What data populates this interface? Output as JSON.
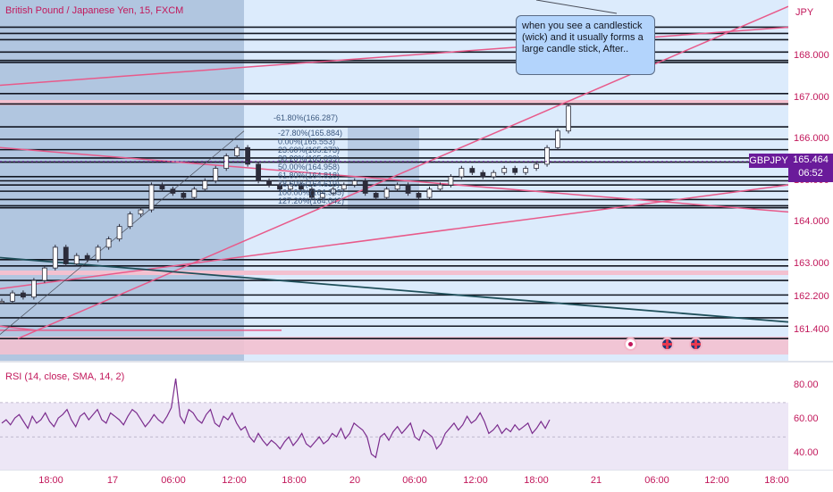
{
  "header": {
    "symbol_title": "British Pound / Japanese Yen, 15, FXCM",
    "rsi_title": "RSI (14, close, SMA, 14, 2)"
  },
  "price_tag": {
    "symbol": "GBPJPY",
    "price": "165.464",
    "countdown": "06:52"
  },
  "annotation": {
    "text": "when you see a candlestick (wick) and it usually forms a large candle stick, After.."
  },
  "fib_labels": [
    "-61.80%(166.287)",
    "-27.80%(165.884)",
    "0.00%(165.553)",
    "23.60%(165.273)",
    "38.20%(165.099)",
    "50.00%(164.958)",
    "61.80%(164.818)",
    "78.60%(164.619)",
    "100.00%(164.365)",
    "127.20%(164.042)"
  ],
  "colors": {
    "accent": "#c2185b",
    "tag": "#6a1b9a",
    "candle": "#2c2c3a",
    "rsi_line": "#7b2d8e",
    "trendline": "#e85a8a"
  },
  "icons": [
    "event-icon",
    "uk-flag-icon",
    "uk-flag-icon"
  ],
  "chart_data": [
    {
      "type": "candlestick",
      "price_axis": {
        "unit": "JPY",
        "ticks": [
          "168.000",
          "167.000",
          "166.000",
          "165.000",
          "164.000",
          "163.000",
          "162.200",
          "161.400"
        ],
        "range": [
          161.0,
          169.0
        ]
      },
      "time_axis": {
        "ticks": [
          "18:00",
          "17",
          "06:00",
          "12:00",
          "18:00",
          "20",
          "06:00",
          "12:00",
          "18:00",
          "21",
          "06:00",
          "12:00",
          "18:00"
        ]
      },
      "last_price": 165.464,
      "price_path": [
        162.1,
        162.3,
        162.2,
        162.6,
        162.9,
        163.4,
        163.0,
        163.2,
        163.1,
        163.4,
        163.6,
        163.9,
        164.2,
        164.3,
        164.9,
        164.8,
        164.7,
        164.6,
        164.8,
        165.0,
        165.3,
        165.6,
        165.8,
        165.4,
        165.0,
        164.9,
        164.8,
        164.9,
        164.8,
        164.6,
        164.7,
        164.8,
        164.9,
        165.0,
        164.7,
        164.6,
        164.8,
        164.9,
        164.7,
        164.6,
        164.8,
        164.9,
        165.1,
        165.3,
        165.2,
        165.1,
        165.2,
        165.3,
        165.2,
        165.3,
        165.4,
        165.8,
        166.2,
        166.8
      ]
    },
    {
      "type": "line",
      "title": "RSI (14, close, SMA, 14, 2)",
      "y_ticks": [
        "80.00",
        "60.00",
        "40.00"
      ],
      "ylim": [
        30,
        88
      ],
      "series": [
        {
          "values": [
            58,
            60,
            57,
            61,
            63,
            59,
            55,
            62,
            58,
            60,
            64,
            59,
            56,
            61,
            63,
            66,
            60,
            56,
            62,
            64,
            60,
            63,
            66,
            60,
            58,
            64,
            62,
            60,
            57,
            62,
            66,
            64,
            60,
            56,
            59,
            63,
            60,
            58,
            62,
            67,
            84,
            62,
            58,
            66,
            64,
            60,
            58,
            63,
            66,
            58,
            56,
            62,
            60,
            64,
            58,
            54,
            56,
            50,
            47,
            52,
            48,
            45,
            48,
            46,
            43,
            47,
            50,
            45,
            48,
            52,
            46,
            44,
            47,
            50,
            46,
            48,
            52,
            50,
            55,
            49,
            52,
            58,
            56,
            54,
            50,
            40,
            38,
            50,
            52,
            48,
            53,
            56,
            52,
            55,
            58,
            50,
            48,
            54,
            52,
            50,
            43,
            46,
            52,
            55,
            58,
            54,
            57,
            62,
            58,
            60,
            64,
            59,
            52,
            54,
            57,
            52,
            55,
            53,
            57,
            54,
            56,
            58,
            52,
            55,
            59,
            55,
            60
          ]
        }
      ]
    }
  ]
}
